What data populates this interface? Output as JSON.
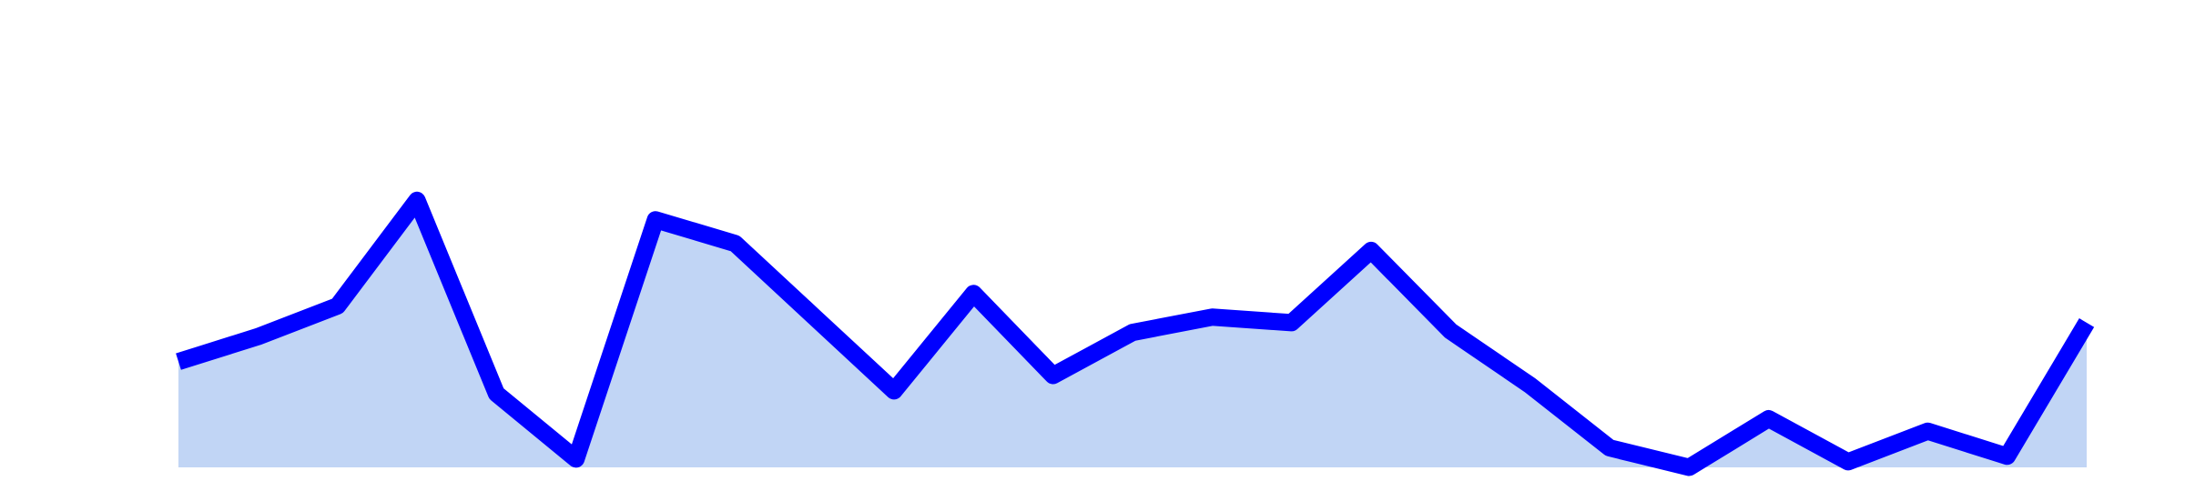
{
  "chart_data": {
    "type": "area",
    "series": [
      {
        "color": "#0000ff",
        "fill": "#c1d5f5",
        "values": [
          76,
          94,
          116,
          192,
          53,
          6,
          178,
          161,
          108,
          55,
          125,
          66,
          97,
          108,
          104,
          156,
          98,
          59,
          14,
          0,
          35,
          4,
          26,
          8,
          104
        ]
      }
    ],
    "ylim": [
      0,
      336
    ]
  }
}
